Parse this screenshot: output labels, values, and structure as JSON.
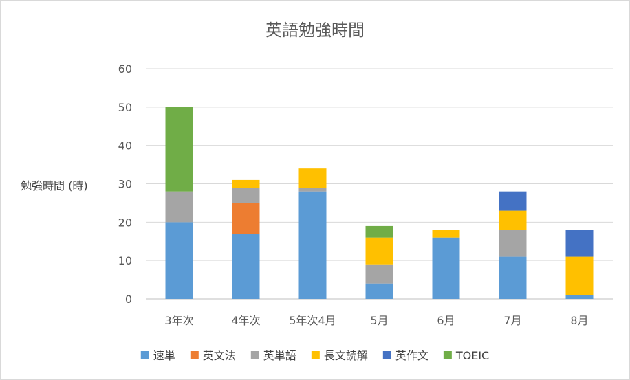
{
  "chart_data": {
    "type": "bar",
    "stacked": true,
    "title": "英語勉強時間",
    "ylabel": "勉強時間 (時)",
    "xlabel": "",
    "ylim": [
      0,
      60
    ],
    "yticks": [
      0,
      10,
      20,
      30,
      40,
      50,
      60
    ],
    "grid": true,
    "legend_position": "bottom",
    "categories": [
      "3年次",
      "4年次",
      "5年次4月",
      "5月",
      "6月",
      "7月",
      "8月"
    ],
    "series": [
      {
        "name": "速単",
        "color": "#5B9BD5",
        "values": [
          20,
          17,
          28,
          4,
          16,
          11,
          1
        ]
      },
      {
        "name": "英文法",
        "color": "#ED7D31",
        "values": [
          0,
          8,
          0,
          0,
          0,
          0,
          0
        ]
      },
      {
        "name": "英単語",
        "color": "#A5A5A5",
        "values": [
          8,
          4,
          1,
          5,
          0,
          7,
          0
        ]
      },
      {
        "name": "長文読解",
        "color": "#FFC000",
        "values": [
          0,
          2,
          5,
          7,
          2,
          5,
          10
        ]
      },
      {
        "name": "英作文",
        "color": "#4472C4",
        "values": [
          0,
          0,
          0,
          0,
          0,
          5,
          7
        ]
      },
      {
        "name": "TOEIC",
        "color": "#70AD47",
        "values": [
          22,
          0,
          0,
          3,
          0,
          0,
          0
        ]
      }
    ]
  }
}
